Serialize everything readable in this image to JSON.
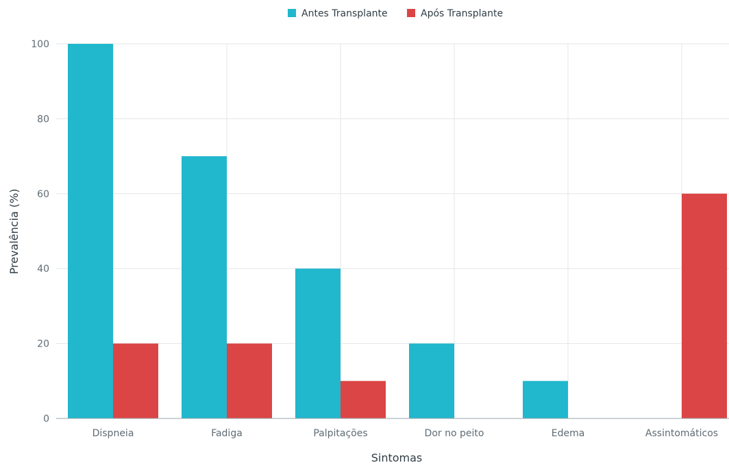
{
  "chart_data": {
    "type": "bar",
    "categories": [
      "Dispneia",
      "Fadiga",
      "Palpitações",
      "Dor no peito",
      "Edema",
      "Assintomáticos"
    ],
    "series": [
      {
        "name": "Antes Transplante",
        "color": "#21b7cd",
        "values": [
          100,
          70,
          40,
          20,
          10,
          0
        ]
      },
      {
        "name": "Após Transplante",
        "color": "#db4545",
        "values": [
          20,
          20,
          10,
          0,
          0,
          60
        ]
      }
    ],
    "xlabel": "Sintomas",
    "ylabel": "Prevalência (%)",
    "ylim": [
      0,
      100
    ],
    "yticks": [
      0,
      20,
      40,
      60,
      80,
      100
    ],
    "grid": true,
    "legend_position": "top-center"
  }
}
